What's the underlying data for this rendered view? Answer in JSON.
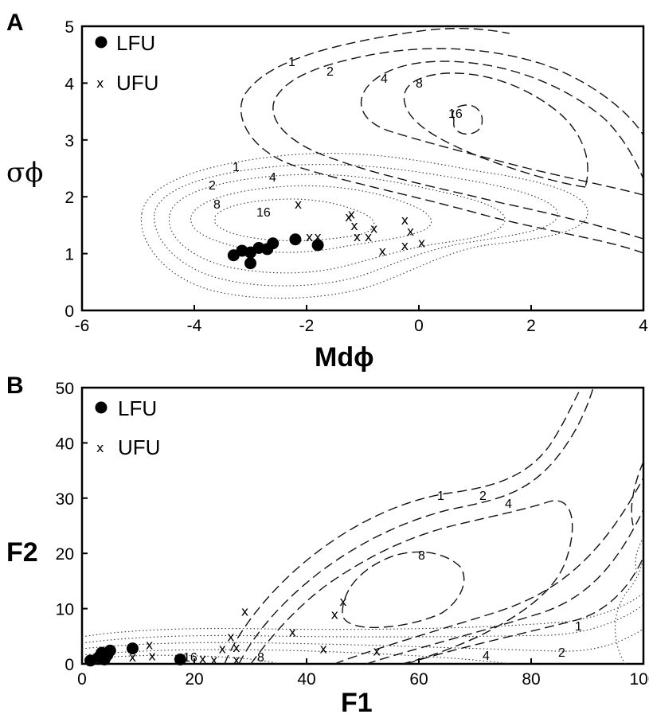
{
  "chart_data": [
    {
      "panel": "A",
      "type": "scatter",
      "xlabel": "Mdϕ",
      "ylabel": "σϕ",
      "xlim": [
        -6,
        4
      ],
      "ylim": [
        0,
        5
      ],
      "xticks": [
        "-6",
        "-4",
        "-2",
        "0",
        "2",
        "4"
      ],
      "yticks": [
        "0",
        "1",
        "2",
        "3",
        "4",
        "5"
      ],
      "legend": {
        "placement": "top-left",
        "entries": [
          {
            "marker": "dot",
            "label": "LFU"
          },
          {
            "marker": "x",
            "label": "UFU"
          }
        ]
      },
      "series": [
        {
          "name": "LFU",
          "marker": "dot",
          "points": [
            [
              -3.3,
              0.97
            ],
            [
              -3.15,
              1.05
            ],
            [
              -3.0,
              1.02
            ],
            [
              -3.0,
              0.83
            ],
            [
              -2.85,
              1.1
            ],
            [
              -2.7,
              1.08
            ],
            [
              -2.6,
              1.18
            ],
            [
              -2.2,
              1.25
            ],
            [
              -1.8,
              1.15
            ]
          ]
        },
        {
          "name": "UFU",
          "marker": "x",
          "points": [
            [
              -2.15,
              1.88
            ],
            [
              -1.95,
              1.3
            ],
            [
              -1.8,
              1.3
            ],
            [
              -1.25,
              1.65
            ],
            [
              -1.2,
              1.7
            ],
            [
              -1.15,
              1.5
            ],
            [
              -1.1,
              1.3
            ],
            [
              -0.9,
              1.3
            ],
            [
              -0.8,
              1.45
            ],
            [
              -0.65,
              1.05
            ],
            [
              -0.25,
              1.6
            ],
            [
              -0.25,
              1.15
            ],
            [
              -0.15,
              1.4
            ],
            [
              0.05,
              1.2
            ]
          ]
        }
      ],
      "contour_labels": {
        "dashed": [
          "1",
          "2",
          "4",
          "8",
          "16"
        ],
        "dotted": [
          "1",
          "2",
          "4",
          "8",
          "16"
        ]
      }
    },
    {
      "panel": "B",
      "type": "scatter",
      "xlabel": "F1",
      "ylabel": "F2",
      "xlim": [
        0,
        100
      ],
      "ylim": [
        0,
        50
      ],
      "xticks": [
        "0",
        "20",
        "40",
        "60",
        "80",
        "100"
      ],
      "yticks": [
        "0",
        "10",
        "20",
        "30",
        "40",
        "50"
      ],
      "legend": {
        "placement": "top-left",
        "entries": [
          {
            "marker": "dot",
            "label": "LFU"
          },
          {
            "marker": "x",
            "label": "UFU"
          }
        ]
      },
      "series": [
        {
          "name": "LFU",
          "marker": "dot",
          "points": [
            [
              1.5,
              0.6
            ],
            [
              3.0,
              1.2
            ],
            [
              3.5,
              2.0
            ],
            [
              4.0,
              0.8
            ],
            [
              4.5,
              1.6
            ],
            [
              5.0,
              2.4
            ],
            [
              9.0,
              2.8
            ],
            [
              17.5,
              0.8
            ]
          ]
        },
        {
          "name": "UFU",
          "marker": "x",
          "points": [
            [
              9.0,
              1.3
            ],
            [
              12.0,
              3.5
            ],
            [
              12.5,
              1.5
            ],
            [
              21.5,
              1.0
            ],
            [
              23.5,
              0.8
            ],
            [
              25.0,
              2.8
            ],
            [
              26.5,
              5.0
            ],
            [
              27.5,
              3.0
            ],
            [
              27.5,
              0.8
            ],
            [
              29.0,
              9.6
            ],
            [
              37.5,
              5.8
            ],
            [
              43.0,
              2.8
            ],
            [
              45.0,
              9.0
            ],
            [
              46.5,
              11.4
            ],
            [
              52.5,
              2.4
            ]
          ]
        }
      ],
      "contour_labels": {
        "dashed": [
          "1",
          "2",
          "4",
          "8"
        ],
        "dotted": [
          "1",
          "2",
          "4",
          "8",
          "16"
        ]
      }
    }
  ]
}
